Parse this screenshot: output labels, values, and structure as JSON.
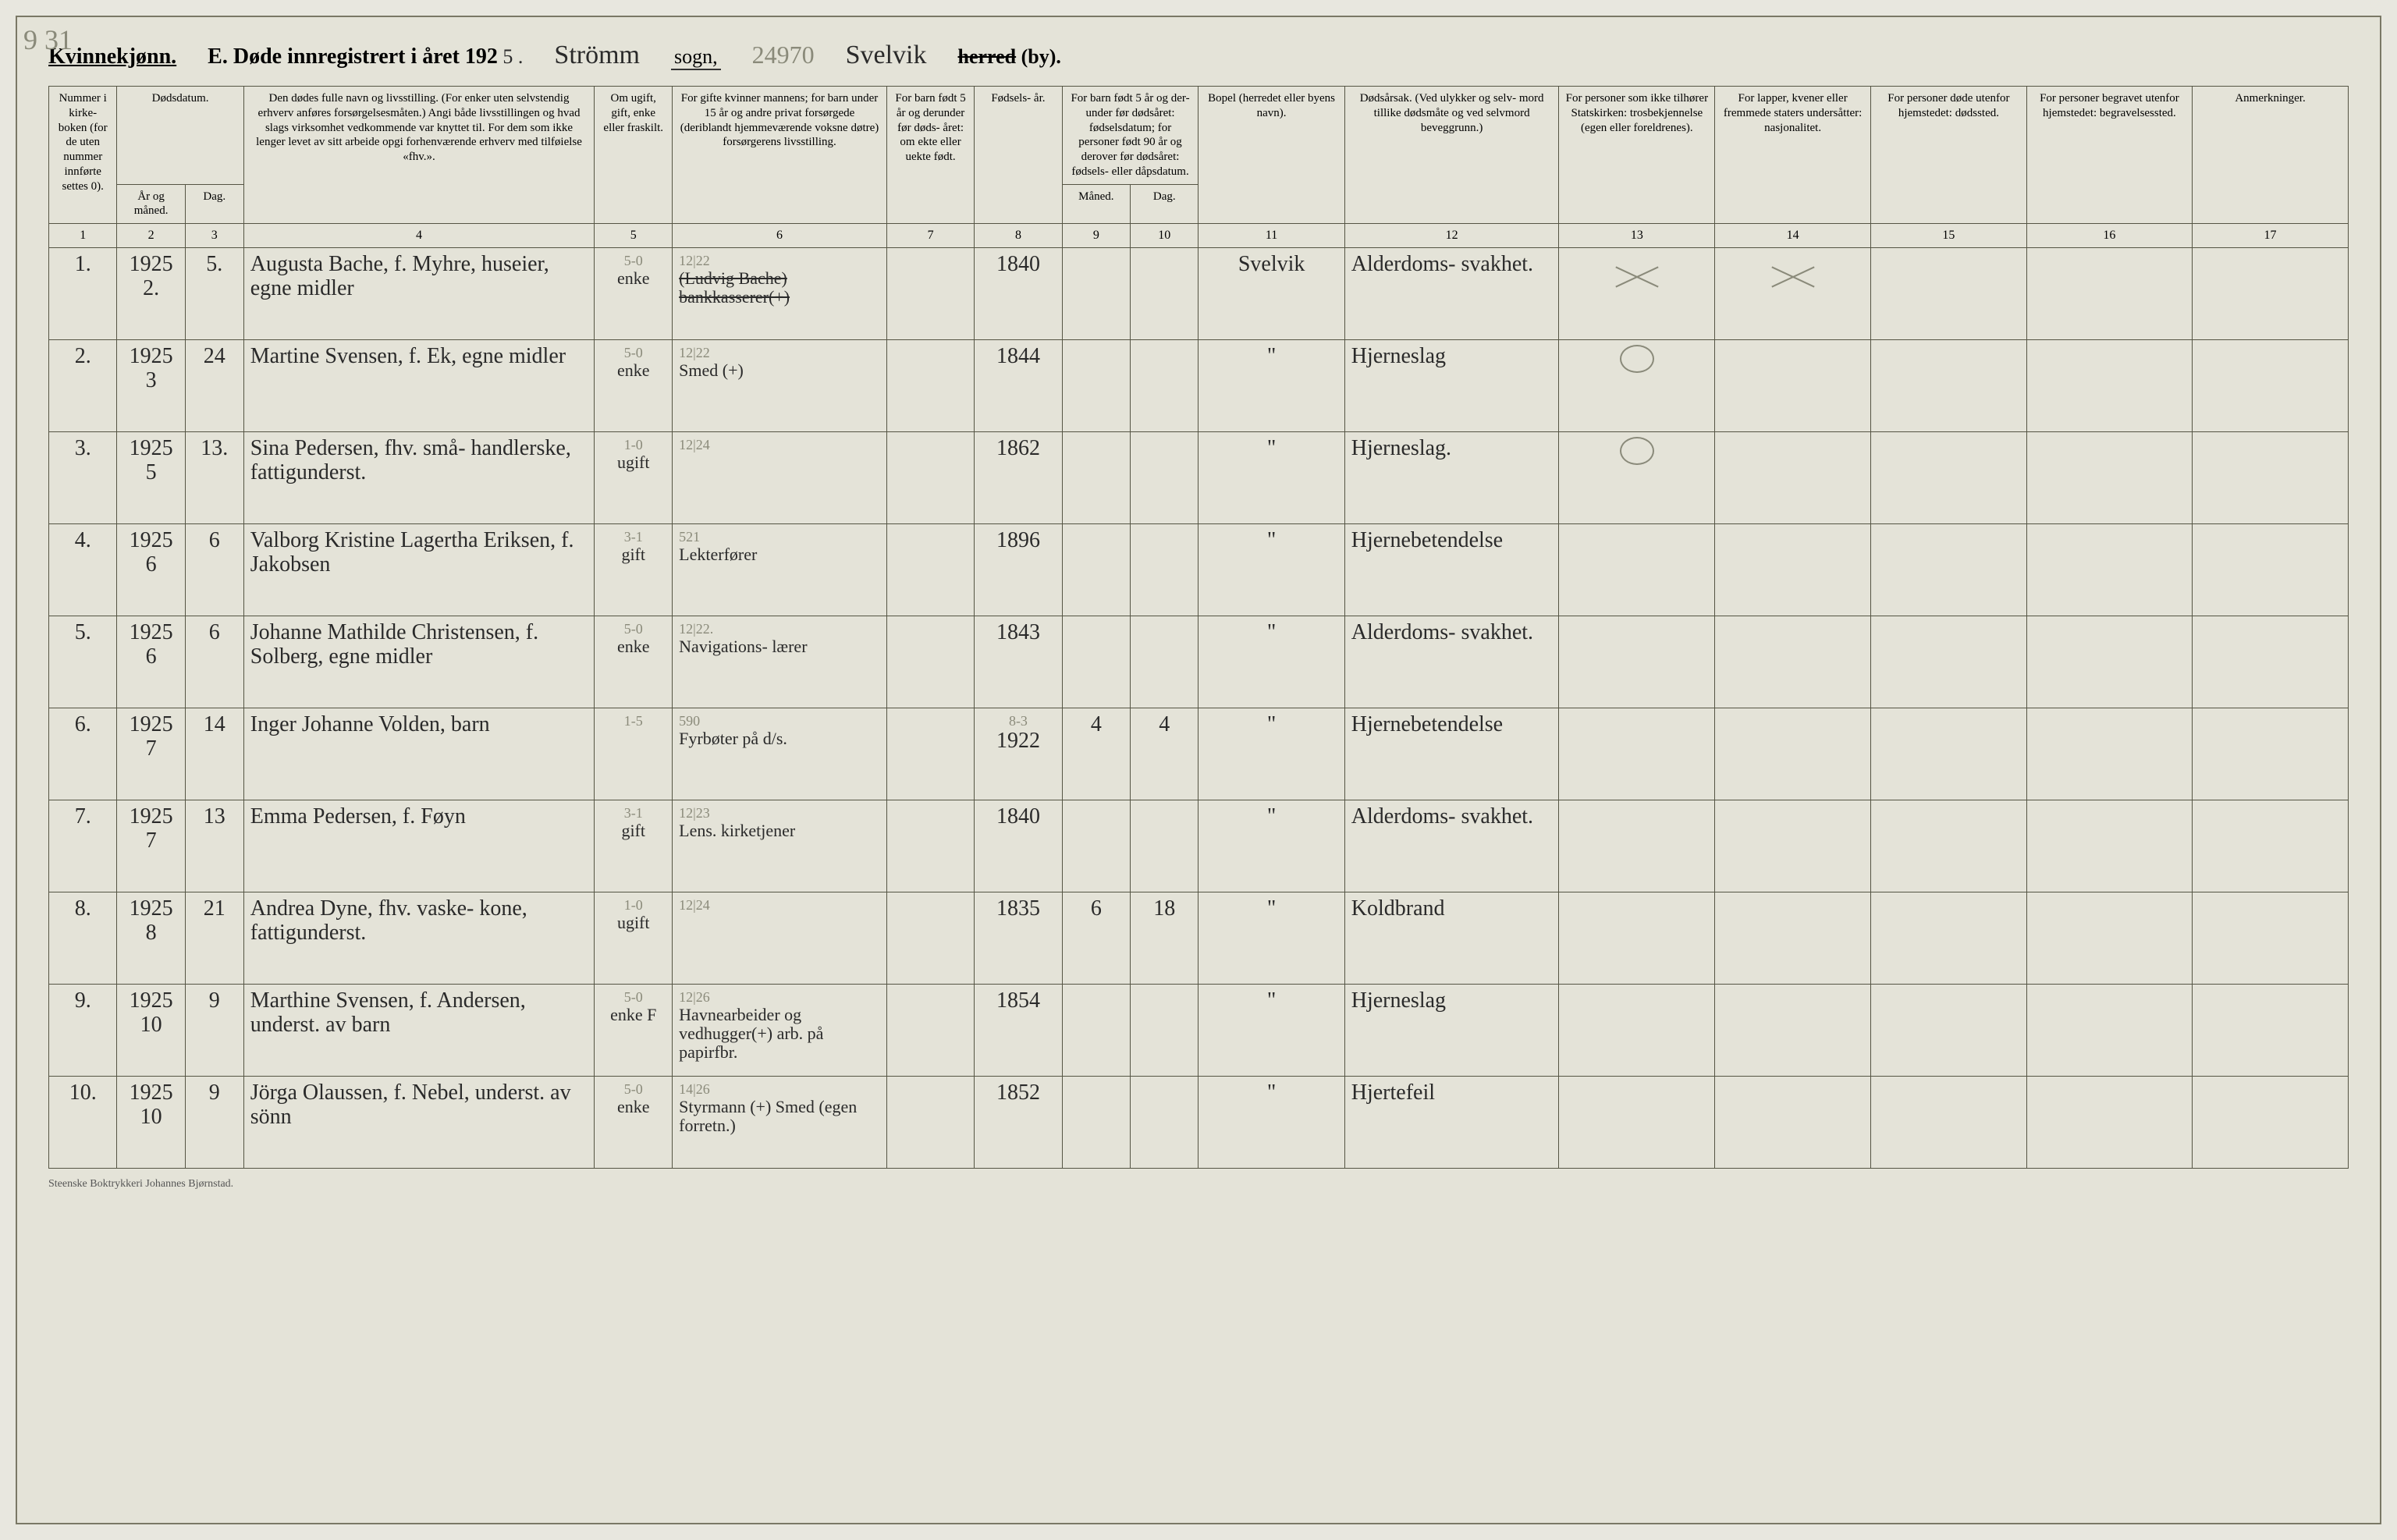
{
  "marginNote": "9 31",
  "header": {
    "kvinne": "Kvinnekjønn.",
    "sectionE": "E.  Døde innregistrert i året 192",
    "yearSuffix": "5 .",
    "parishHw": "Strömm",
    "sognLabel": "sogn,",
    "pageHw": "24970",
    "herredHw": "Svelvik",
    "herredLabel": "herred",
    "byLabel": "(by)."
  },
  "columns": {
    "c1": "Nummer i kirke- boken (for de uten nummer innførte settes 0).",
    "c2top": "Dødsdatum.",
    "c2a": "År og måned.",
    "c2b": "Dag.",
    "c4": "Den dødes fulle navn og livsstilling. (For enker uten selvstendig erhverv anføres forsørgelsesmåten.) Angi både livsstillingen og hvad slags virksomhet vedkommende var knyttet til. For dem som ikke lenger levet av sitt arbeide opgi forhenværende erhverv med tilføielse «fhv.».",
    "c5": "Om ugift, gift, enke eller fraskilt.",
    "c6": "For gifte kvinner mannens; for barn under 15 år og andre privat forsørgede (deriblandt hjemmeværende voksne døtre) forsørgerens livsstilling.",
    "c7": "For barn født 5 år og derunder før døds- året: om ekte eller uekte født.",
    "c8": "Fødsels- år.",
    "c9top": "For barn født 5 år og der- under før dødsåret: fødselsdatum; for personer født 90 år og derover før dødsåret: fødsels- eller dåpsdatum.",
    "c9a": "Måned.",
    "c9b": "Dag.",
    "c11": "Bopel (herredet eller byens navn).",
    "c12": "Dødsårsak. (Ved ulykker og selv- mord tillike dødsmåte og ved selvmord beveggrunn.)",
    "c13": "For personer som ikke tilhører Statskirken: trosbekjennelse (egen eller foreldrenes).",
    "c14": "For lapper, kvener eller fremmede staters undersåtter: nasjonalitet.",
    "c15": "For personer døde utenfor hjemstedet: dødssted.",
    "c16": "For personer begravet utenfor hjemstedet: begravelsessted.",
    "c17": "Anmerkninger."
  },
  "colnums": [
    "1",
    "2",
    "3",
    "4",
    "5",
    "6",
    "7",
    "8",
    "9",
    "10",
    "11",
    "12",
    "13",
    "14",
    "15",
    "16",
    "17"
  ],
  "rows": [
    {
      "num": "1.",
      "yr": "1925",
      "mo": "2.",
      "day": "5.",
      "name": "Augusta Bache, f. Myhre, huseier, egne midler",
      "civil": "enke",
      "civilTop": "5-0",
      "spouse": "(Ludvig Bache) bankkasserer(+)",
      "spouseTop": "12|22",
      "birth": "1840",
      "bm": "",
      "bd": "",
      "bopel": "Svelvik",
      "cause": "Alderdoms- svakhet.",
      "c13": "X",
      "c14": "X"
    },
    {
      "num": "2.",
      "yr": "1925",
      "mo": "3",
      "day": "24",
      "name": "Martine Svensen, f. Ek, egne midler",
      "civil": "enke",
      "civilTop": "5-0",
      "spouse": "Smed (+)",
      "spouseTop": "12|22",
      "birth": "1844",
      "bm": "",
      "bd": "",
      "bopel": "\"",
      "cause": "Hjerneslag",
      "c13": "O",
      "c14": ""
    },
    {
      "num": "3.",
      "yr": "1925",
      "mo": "5",
      "day": "13.",
      "name": "Sina Pedersen, fhv. små- handlerske, fattigunderst.",
      "civil": "ugift",
      "civilTop": "1-0",
      "spouse": "",
      "spouseTop": "12|24",
      "birth": "1862",
      "bm": "",
      "bd": "",
      "bopel": "\"",
      "cause": "Hjerneslag.",
      "c13": "O",
      "c14": ""
    },
    {
      "num": "4.",
      "yr": "1925",
      "mo": "6",
      "day": "6",
      "name": "Valborg Kristine Lagertha Eriksen, f. Jakobsen",
      "civil": "gift",
      "civilTop": "3-1",
      "spouse": "Lekterfører",
      "spouseTop": "521",
      "birth": "1896",
      "bm": "",
      "bd": "",
      "bopel": "\"",
      "cause": "Hjernebetendelse",
      "c13": "",
      "c14": ""
    },
    {
      "num": "5.",
      "yr": "1925",
      "mo": "6",
      "day": "6",
      "name": "Johanne Mathilde Christensen, f. Solberg, egne midler",
      "civil": "enke",
      "civilTop": "5-0",
      "spouse": "Navigations- lærer",
      "spouseTop": "12|22.",
      "birth": "1843",
      "bm": "",
      "bd": "",
      "bopel": "\"",
      "cause": "Alderdoms- svakhet.",
      "c13": "",
      "c14": ""
    },
    {
      "num": "6.",
      "yr": "1925",
      "mo": "7",
      "day": "14",
      "name": "Inger Johanne Volden, barn",
      "civil": "",
      "civilTop": "1-5",
      "spouse": "Fyrbøter på d/s.",
      "spouseTop": "590",
      "birth": "1922",
      "bm": "4",
      "bd": "4",
      "birthTop": "8-3",
      "bopel": "\"",
      "cause": "Hjernebetendelse",
      "c13": "",
      "c14": ""
    },
    {
      "num": "7.",
      "yr": "1925",
      "mo": "7",
      "day": "13",
      "name": "Emma Pedersen, f. Føyn",
      "civil": "gift",
      "civilTop": "3-1",
      "spouse": "Lens. kirketjener",
      "spouseTop": "12|23",
      "birth": "1840",
      "bm": "",
      "bd": "",
      "bopel": "\"",
      "cause": "Alderdoms- svakhet.",
      "c13": "",
      "c14": ""
    },
    {
      "num": "8.",
      "yr": "1925",
      "mo": "8",
      "day": "21",
      "name": "Andrea Dyne, fhv. vaske- kone, fattigunderst.",
      "civil": "ugift",
      "civilTop": "1-0",
      "spouse": "",
      "spouseTop": "12|24",
      "birth": "1835",
      "bm": "6",
      "bd": "18",
      "bopel": "\"",
      "cause": "Koldbrand",
      "c13": "",
      "c14": ""
    },
    {
      "num": "9.",
      "yr": "1925",
      "mo": "10",
      "day": "9",
      "name": "Marthine Svensen, f. Andersen, underst. av barn",
      "civil": "enke F",
      "civilTop": "5-0",
      "spouse": "Havnearbeider og vedhugger(+) arb. på papirfbr.",
      "spouseTop": "12|26",
      "birth": "1854",
      "bm": "",
      "bd": "",
      "bopel": "\"",
      "cause": "Hjerneslag",
      "c13": "",
      "c14": ""
    },
    {
      "num": "10.",
      "yr": "1925",
      "mo": "10",
      "day": "9",
      "name": "Jörga Olaussen, f. Nebel, underst. av sönn",
      "civil": "enke",
      "civilTop": "5-0",
      "spouse": "Styrmann (+) Smed (egen forretn.)",
      "spouseTop": "14|26",
      "birth": "1852",
      "bm": "",
      "bd": "",
      "bopel": "\"",
      "cause": "Hjertefeil",
      "c13": "",
      "c14": ""
    }
  ],
  "footer": "Steenske Boktrykkeri Johannes Bjørnstad."
}
